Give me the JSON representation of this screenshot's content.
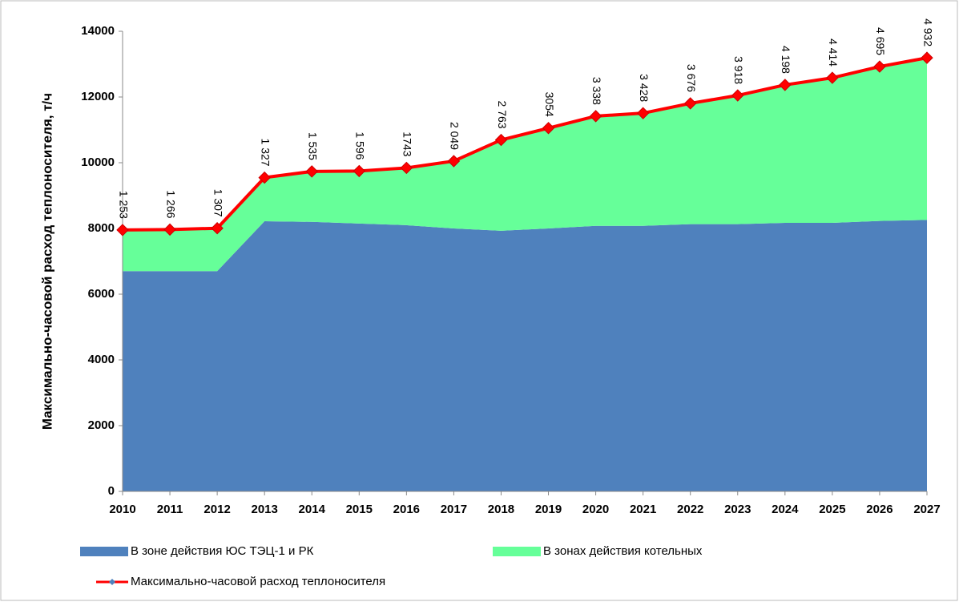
{
  "chart_data": {
    "type": "area",
    "y_label": "Максимально-часовой расход теплоносителя, т/ч",
    "categories": [
      "2010",
      "2011",
      "2012",
      "2013",
      "2014",
      "2015",
      "2016",
      "2017",
      "2018",
      "2019",
      "2020",
      "2021",
      "2022",
      "2023",
      "2024",
      "2025",
      "2026",
      "2027"
    ],
    "series": [
      {
        "name": "В зоне действия ЮС ТЭЦ-1  и РК",
        "color": "#4f81bd",
        "type": "area",
        "values": [
          6700,
          6700,
          6700,
          8220,
          8200,
          8150,
          8100,
          8000,
          7930,
          8000,
          8080,
          8080,
          8130,
          8130,
          8170,
          8170,
          8230,
          8260
        ]
      },
      {
        "name": "В зонах действия котельных",
        "color": "#66ff99",
        "type": "area",
        "values": [
          1253,
          1266,
          1307,
          1327,
          1535,
          1596,
          1743,
          2049,
          2763,
          3054,
          3338,
          3428,
          3676,
          3918,
          4198,
          4414,
          4695,
          4932
        ],
        "value_labels": [
          "1 253",
          "1 266",
          "1 307",
          "1 327",
          "1 535",
          "1 596",
          "1743",
          "2 049",
          "2 763",
          "3054",
          "3 338",
          "3 428",
          "3 676",
          "3 918",
          "4 198",
          "4 414",
          "4 695",
          "4 932"
        ]
      },
      {
        "name": "Максимально-часовой расход теплоносителя",
        "color": "#ff0000",
        "type": "line",
        "values": [
          7953,
          7966,
          8007,
          9547,
          9735,
          9746,
          9843,
          10049,
          10693,
          11054,
          11418,
          11508,
          11806,
          12048,
          12368,
          12584,
          12925,
          13192
        ]
      }
    ],
    "ylim": [
      0,
      14000
    ],
    "yticks": [
      0,
      2000,
      4000,
      6000,
      8000,
      10000,
      12000,
      14000
    ]
  }
}
